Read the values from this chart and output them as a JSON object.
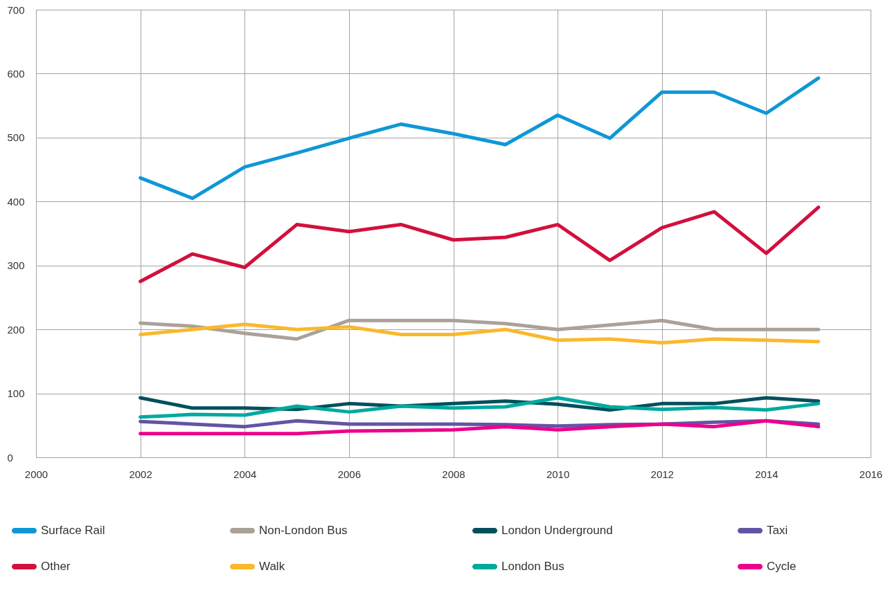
{
  "chart_data": {
    "type": "line",
    "x": [
      2002,
      2003,
      2004,
      2005,
      2006,
      2007,
      2008,
      2009,
      2010,
      2011,
      2012,
      2013,
      2014,
      2015
    ],
    "xlim": [
      2000,
      2016
    ],
    "xticks": [
      2000,
      2002,
      2004,
      2006,
      2008,
      2010,
      2012,
      2014,
      2016
    ],
    "ylim": [
      0,
      700
    ],
    "yticks": [
      0,
      100,
      200,
      300,
      400,
      500,
      600,
      700
    ],
    "grid": true,
    "legend": "bottom",
    "line_style": "solid",
    "series": [
      {
        "name": "Surface Rail",
        "color": "#0f97d7",
        "values": [
          437,
          405,
          454,
          476,
          499,
          521,
          506,
          489,
          535,
          499,
          571,
          571,
          538,
          593
        ]
      },
      {
        "name": "Non-London Bus",
        "color": "#aaa198",
        "values": [
          210,
          205,
          194,
          185,
          214,
          214,
          214,
          209,
          200,
          207,
          214,
          200,
          200,
          200
        ]
      },
      {
        "name": "London Underground",
        "color": "#00505c",
        "values": [
          93,
          77,
          77,
          75,
          84,
          80,
          84,
          88,
          83,
          74,
          84,
          84,
          93,
          88
        ]
      },
      {
        "name": "Taxi",
        "color": "#6354a3",
        "values": [
          56,
          52,
          48,
          57,
          52,
          52,
          52,
          51,
          49,
          51,
          52,
          55,
          57,
          52
        ]
      },
      {
        "name": "Other",
        "color": "#d2103d",
        "values": [
          275,
          318,
          297,
          364,
          353,
          364,
          340,
          344,
          364,
          308,
          359,
          384,
          319,
          391
        ]
      },
      {
        "name": "Walk",
        "color": "#fbb82c",
        "values": [
          192,
          200,
          208,
          200,
          204,
          192,
          192,
          200,
          183,
          185,
          179,
          185,
          183,
          181
        ]
      },
      {
        "name": "London Bus",
        "color": "#00a99e",
        "values": [
          63,
          67,
          66,
          80,
          71,
          80,
          77,
          79,
          93,
          79,
          75,
          78,
          74,
          84
        ]
      },
      {
        "name": "Cycle",
        "color": "#ec008c",
        "values": [
          37,
          37,
          37,
          37,
          41,
          42,
          43,
          48,
          43,
          48,
          52,
          48,
          57,
          48
        ]
      }
    ]
  }
}
